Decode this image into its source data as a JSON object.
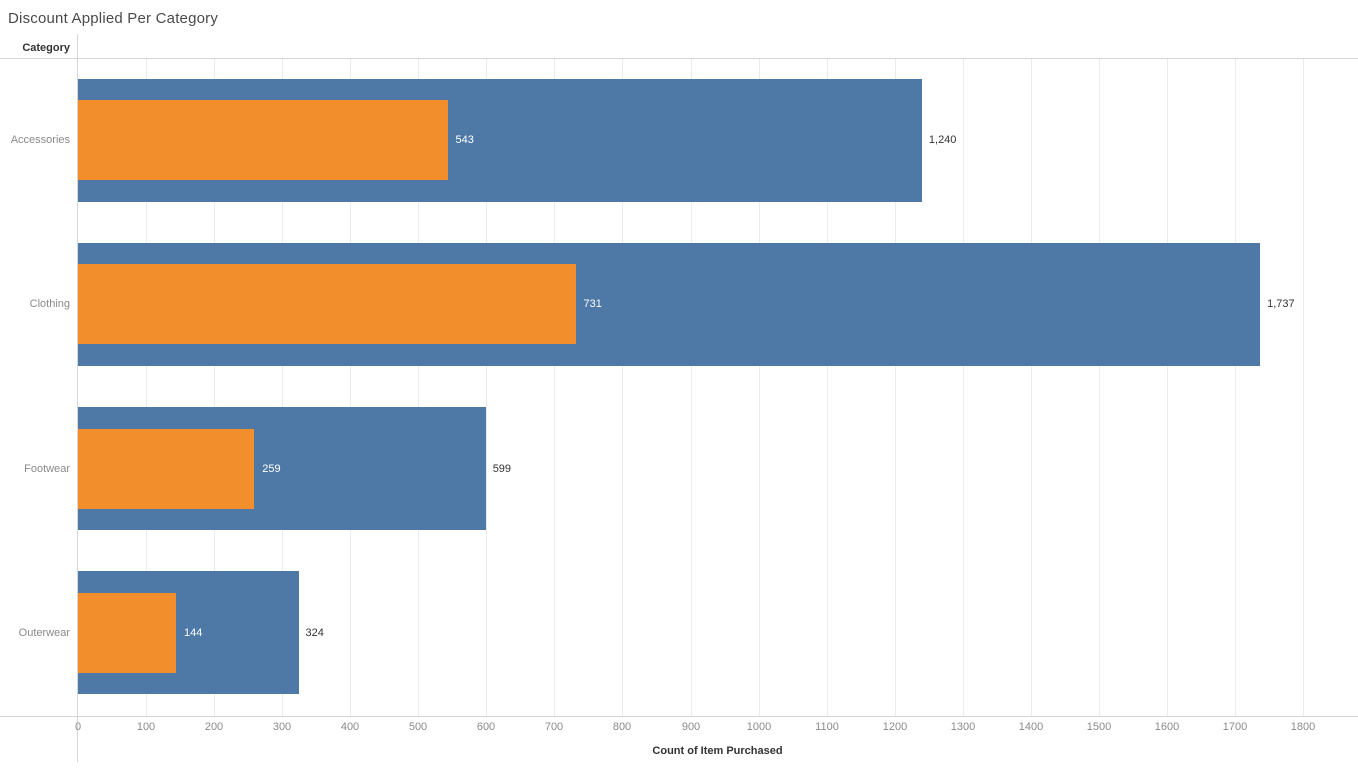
{
  "title": "Discount Applied Per Category",
  "row_header": "Category",
  "colors": {
    "blue_bar": "#4e79a7",
    "orange_bar": "#f28e2b",
    "inside_label": "#ffffff",
    "outside_label": "#333333",
    "axis_text": "#8a8a8a",
    "gridline": "#ebebeb",
    "boundary_line": "#d6d6d6"
  },
  "chart_data": {
    "type": "bar",
    "orientation": "horizontal",
    "title": "Discount Applied Per Category",
    "xlabel": "Count of Item Purchased",
    "ylabel": "Category",
    "xlim": [
      0,
      1800
    ],
    "grid": true,
    "legend": "none",
    "categories": [
      "Accessories",
      "Clothing",
      "Footwear",
      "Outerwear"
    ],
    "series": [
      {
        "name": "blue",
        "color": "#4e79a7",
        "values": [
          1240,
          1737,
          599,
          324
        ],
        "labels": [
          "1,240",
          "1,737",
          "599",
          "324"
        ],
        "label_position": "outside-end"
      },
      {
        "name": "orange",
        "color": "#f28e2b",
        "values": [
          543,
          731,
          259,
          144
        ],
        "labels": [
          "543",
          "731",
          "259",
          "144"
        ],
        "label_position": "inside-end-white"
      }
    ],
    "x_ticks": [
      0,
      100,
      200,
      300,
      400,
      500,
      600,
      700,
      800,
      900,
      1000,
      1100,
      1200,
      1300,
      1400,
      1500,
      1600,
      1700,
      1800
    ]
  }
}
